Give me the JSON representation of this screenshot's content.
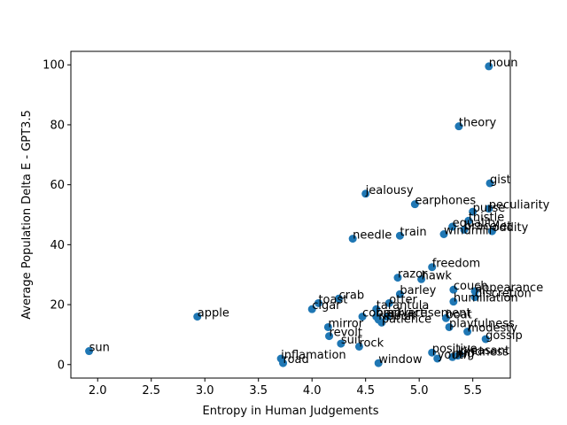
{
  "chart_data": {
    "type": "scatter",
    "xlabel": "Entropy in Human Judgements",
    "ylabel": "Average Population Delta E - GPT3.5",
    "xlim": [
      1.75,
      5.85
    ],
    "ylim": [
      -4.5,
      104.5
    ],
    "xticks": [
      2.0,
      2.5,
      3.0,
      3.5,
      4.0,
      4.5,
      5.0,
      5.5
    ],
    "xtick_labels": [
      "2.0",
      "2.5",
      "3.0",
      "3.5",
      "4.0",
      "4.5",
      "5.0",
      "5.5"
    ],
    "yticks": [
      0,
      20,
      40,
      60,
      80,
      100
    ],
    "ytick_labels": [
      "0",
      "20",
      "40",
      "60",
      "80",
      "100"
    ],
    "grid": false,
    "marker_color": "#1f77b4",
    "points": [
      {
        "label": "noun",
        "x": 5.65,
        "y": 99.5
      },
      {
        "label": "theory",
        "x": 5.37,
        "y": 79.5
      },
      {
        "label": "gist",
        "x": 5.66,
        "y": 60.5
      },
      {
        "label": "jealousy",
        "x": 4.5,
        "y": 57.0
      },
      {
        "label": "earphones",
        "x": 4.96,
        "y": 53.5
      },
      {
        "label": "peculiarity",
        "x": 5.65,
        "y": 52.0
      },
      {
        "label": "purse",
        "x": 5.5,
        "y": 51.0
      },
      {
        "label": "thistle",
        "x": 5.46,
        "y": 48.0
      },
      {
        "label": "equality",
        "x": 5.31,
        "y": 46.0
      },
      {
        "label": "bracelet",
        "x": 5.42,
        "y": 45.0
      },
      {
        "label": "oddity",
        "x": 5.68,
        "y": 44.5
      },
      {
        "label": "windmill",
        "x": 5.23,
        "y": 43.5
      },
      {
        "label": "train",
        "x": 4.82,
        "y": 43.0
      },
      {
        "label": "needle",
        "x": 4.38,
        "y": 42.0
      },
      {
        "label": "freedom",
        "x": 5.12,
        "y": 32.5
      },
      {
        "label": "razor",
        "x": 4.8,
        "y": 29.0
      },
      {
        "label": "hawk",
        "x": 5.02,
        "y": 28.5
      },
      {
        "label": "couch",
        "x": 5.32,
        "y": 25.0
      },
      {
        "label": "appearance",
        "x": 5.52,
        "y": 24.5
      },
      {
        "label": "barley",
        "x": 4.82,
        "y": 23.5
      },
      {
        "label": "discretion",
        "x": 5.52,
        "y": 22.5
      },
      {
        "label": "crab",
        "x": 4.25,
        "y": 22.0
      },
      {
        "label": "humiliation",
        "x": 5.32,
        "y": 21.0
      },
      {
        "label": "toast",
        "x": 4.06,
        "y": 20.5
      },
      {
        "label": "otter",
        "x": 4.72,
        "y": 20.5
      },
      {
        "label": "cigar",
        "x": 4.0,
        "y": 18.5
      },
      {
        "label": "tarantula",
        "x": 4.6,
        "y": 18.5
      },
      {
        "label": "cobra",
        "x": 4.47,
        "y": 16.0
      },
      {
        "label": "apple",
        "x": 2.93,
        "y": 16.0
      },
      {
        "label": "necklace",
        "x": 4.6,
        "y": 16.0
      },
      {
        "label": "advertisement",
        "x": 4.7,
        "y": 16.0
      },
      {
        "label": "ribbon",
        "x": 4.62,
        "y": 15.0
      },
      {
        "label": "boat",
        "x": 5.25,
        "y": 15.5
      },
      {
        "label": "patience",
        "x": 4.65,
        "y": 14.0
      },
      {
        "label": "mirror",
        "x": 4.15,
        "y": 12.5
      },
      {
        "label": "playfulness",
        "x": 5.28,
        "y": 12.5
      },
      {
        "label": "revolt",
        "x": 4.16,
        "y": 9.5
      },
      {
        "label": "modesty",
        "x": 5.45,
        "y": 11.0
      },
      {
        "label": "gossip",
        "x": 5.62,
        "y": 8.5
      },
      {
        "label": "suit",
        "x": 4.27,
        "y": 7.0
      },
      {
        "label": "rock",
        "x": 4.44,
        "y": 6.0
      },
      {
        "label": "sun",
        "x": 1.92,
        "y": 4.5
      },
      {
        "label": "positive",
        "x": 5.12,
        "y": 4.0
      },
      {
        "label": "pleasant",
        "x": 5.38,
        "y": 3.5
      },
      {
        "label": "youth",
        "x": 5.17,
        "y": 2.0
      },
      {
        "label": "hug",
        "x": 5.31,
        "y": 2.5
      },
      {
        "label": "kindness",
        "x": 5.36,
        "y": 3.0
      },
      {
        "label": "inflamation",
        "x": 3.71,
        "y": 2.0
      },
      {
        "label": "road",
        "x": 3.73,
        "y": 0.5
      },
      {
        "label": "window",
        "x": 4.62,
        "y": 0.5
      }
    ]
  }
}
